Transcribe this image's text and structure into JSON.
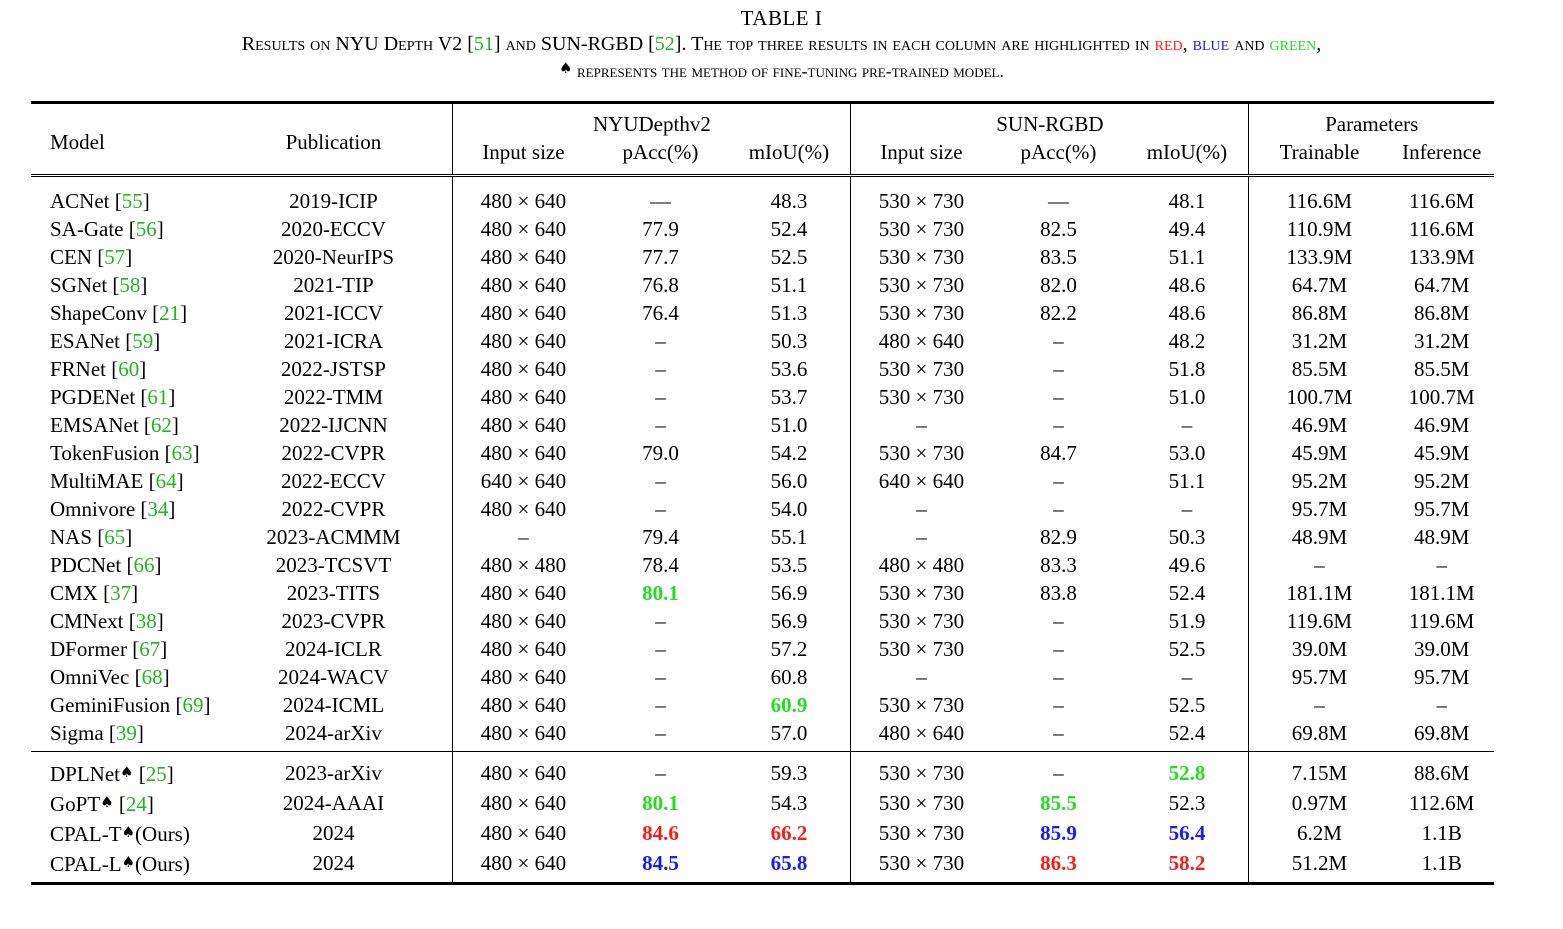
{
  "caption": {
    "title": "TABLE I",
    "line1_prefix": "Results on NYU Depth V2 [",
    "line1_ref1": "51",
    "line1_mid": "] and SUN-RGBD [",
    "line1_ref2": "52",
    "line1_rest": "]. The top three results in each column are highlighted in ",
    "red_word": "red",
    "comma1": ", ",
    "blue_word": "blue",
    "and_word": " and ",
    "green_word": "green",
    "comma2": ",",
    "spade": "♠",
    "line2": " represents the method of fine-tuning pre-trained model."
  },
  "colors": {
    "red": "#ff1a1a",
    "blue": "#1a1aff",
    "green": "#22dd22",
    "cite": "#22b422"
  },
  "header": {
    "model": "Model",
    "publication": "Publication",
    "nyu": "NYUDepthv2",
    "sun": "SUN-RGBD",
    "params": "Parameters",
    "input_size": "Input size",
    "pacc": "pAcc(%)",
    "miou": "mIoU(%)",
    "trainable": "Trainable",
    "inference": "Inference"
  },
  "rows": [
    {
      "model": "ACNet",
      "ref": "55",
      "pub": "2019-ICIP",
      "nyu_in": "480 × 640",
      "nyu_pacc": "—",
      "nyu_miou": "48.3",
      "sun_in": "530 × 730",
      "sun_pacc": "—",
      "sun_miou": "48.1",
      "train": "116.6M",
      "infer": "116.6M"
    },
    {
      "model": "SA-Gate",
      "ref": "56",
      "pub": "2020-ECCV",
      "nyu_in": "480 × 640",
      "nyu_pacc": "77.9",
      "nyu_miou": "52.4",
      "sun_in": "530 × 730",
      "sun_pacc": "82.5",
      "sun_miou": "49.4",
      "train": "110.9M",
      "infer": "116.6M"
    },
    {
      "model": "CEN",
      "ref": "57",
      "pub": "2020-NeurIPS",
      "nyu_in": "480 × 640",
      "nyu_pacc": "77.7",
      "nyu_miou": "52.5",
      "sun_in": "530 × 730",
      "sun_pacc": "83.5",
      "sun_miou": "51.1",
      "train": "133.9M",
      "infer": "133.9M"
    },
    {
      "model": "SGNet",
      "ref": "58",
      "pub": "2021-TIP",
      "nyu_in": "480 × 640",
      "nyu_pacc": "76.8",
      "nyu_miou": "51.1",
      "sun_in": "530 × 730",
      "sun_pacc": "82.0",
      "sun_miou": "48.6",
      "train": "64.7M",
      "infer": "64.7M"
    },
    {
      "model": "ShapeConv",
      "ref": "21",
      "pub": "2021-ICCV",
      "nyu_in": "480 × 640",
      "nyu_pacc": "76.4",
      "nyu_miou": "51.3",
      "sun_in": "530 × 730",
      "sun_pacc": "82.2",
      "sun_miou": "48.6",
      "train": "86.8M",
      "infer": "86.8M"
    },
    {
      "model": "ESANet",
      "ref": "59",
      "pub": "2021-ICRA",
      "nyu_in": "480 × 640",
      "nyu_pacc": "–",
      "nyu_miou": "50.3",
      "sun_in": "480 × 640",
      "sun_pacc": "–",
      "sun_miou": "48.2",
      "train": "31.2M",
      "infer": "31.2M"
    },
    {
      "model": "FRNet",
      "ref": "60",
      "pub": "2022-JSTSP",
      "nyu_in": "480 × 640",
      "nyu_pacc": "–",
      "nyu_miou": "53.6",
      "sun_in": "530 × 730",
      "sun_pacc": "–",
      "sun_miou": "51.8",
      "train": "85.5M",
      "infer": "85.5M"
    },
    {
      "model": "PGDENet",
      "ref": "61",
      "pub": "2022-TMM",
      "nyu_in": "480 × 640",
      "nyu_pacc": "–",
      "nyu_miou": "53.7",
      "sun_in": "530 × 730",
      "sun_pacc": "–",
      "sun_miou": "51.0",
      "train": "100.7M",
      "infer": "100.7M"
    },
    {
      "model": "EMSANet",
      "ref": "62",
      "pub": "2022-IJCNN",
      "nyu_in": "480 × 640",
      "nyu_pacc": "–",
      "nyu_miou": "51.0",
      "sun_in": "–",
      "sun_pacc": "–",
      "sun_miou": "–",
      "train": "46.9M",
      "infer": "46.9M"
    },
    {
      "model": "TokenFusion",
      "ref": "63",
      "pub": "2022-CVPR",
      "nyu_in": "480 × 640",
      "nyu_pacc": "79.0",
      "nyu_miou": "54.2",
      "sun_in": "530 × 730",
      "sun_pacc": "84.7",
      "sun_miou": "53.0",
      "train": "45.9M",
      "infer": "45.9M"
    },
    {
      "model": "MultiMAE",
      "ref": "64",
      "pub": "2022-ECCV",
      "nyu_in": "640 × 640",
      "nyu_pacc": "–",
      "nyu_miou": "56.0",
      "sun_in": "640 × 640",
      "sun_pacc": "–",
      "sun_miou": "51.1",
      "train": "95.2M",
      "infer": "95.2M"
    },
    {
      "model": "Omnivore",
      "ref": "34",
      "pub": "2022-CVPR",
      "nyu_in": "480 × 640",
      "nyu_pacc": "–",
      "nyu_miou": "54.0",
      "sun_in": "–",
      "sun_pacc": "–",
      "sun_miou": "–",
      "train": "95.7M",
      "infer": "95.7M"
    },
    {
      "model": "NAS",
      "ref": "65",
      "pub": "2023-ACMMM",
      "nyu_in": "–",
      "nyu_pacc": "79.4",
      "nyu_miou": "55.1",
      "sun_in": "–",
      "sun_pacc": "82.9",
      "sun_miou": "50.3",
      "train": "48.9M",
      "infer": "48.9M"
    },
    {
      "model": "PDCNet",
      "ref": "66",
      "pub": "2023-TCSVT",
      "nyu_in": "480 × 480",
      "nyu_pacc": "78.4",
      "nyu_miou": "53.5",
      "sun_in": "480 × 480",
      "sun_pacc": "83.3",
      "sun_miou": "49.6",
      "train": "–",
      "infer": "–"
    },
    {
      "model": "CMX",
      "ref": "37",
      "pub": "2023-TITS",
      "nyu_in": "480 × 640",
      "nyu_pacc": "80.1",
      "nyu_pacc_hl": "green",
      "nyu_miou": "56.9",
      "sun_in": "530 × 730",
      "sun_pacc": "83.8",
      "sun_miou": "52.4",
      "train": "181.1M",
      "infer": "181.1M"
    },
    {
      "model": "CMNext",
      "ref": "38",
      "pub": "2023-CVPR",
      "nyu_in": "480 × 640",
      "nyu_pacc": "–",
      "nyu_miou": "56.9",
      "sun_in": "530 × 730",
      "sun_pacc": "–",
      "sun_miou": "51.9",
      "train": "119.6M",
      "infer": "119.6M"
    },
    {
      "model": "DFormer",
      "ref": "67",
      "pub": "2024-ICLR",
      "nyu_in": "480 × 640",
      "nyu_pacc": "–",
      "nyu_miou": "57.2",
      "sun_in": "530 × 730",
      "sun_pacc": "–",
      "sun_miou": "52.5",
      "train": "39.0M",
      "infer": "39.0M"
    },
    {
      "model": "OmniVec",
      "ref": "68",
      "pub": "2024-WACV",
      "nyu_in": "480 × 640",
      "nyu_pacc": "–",
      "nyu_miou": "60.8",
      "sun_in": "–",
      "sun_pacc": "–",
      "sun_miou": "–",
      "train": "95.7M",
      "infer": "95.7M"
    },
    {
      "model": "GeminiFusion",
      "ref": "69",
      "pub": "2024-ICML",
      "nyu_in": "480 × 640",
      "nyu_pacc": "–",
      "nyu_miou": "60.9",
      "nyu_miou_hl": "green",
      "sun_in": "530 × 730",
      "sun_pacc": "–",
      "sun_miou": "52.5",
      "train": "–",
      "infer": "–"
    },
    {
      "model": "Sigma",
      "ref": "39",
      "pub": "2024-arXiv",
      "nyu_in": "480 × 640",
      "nyu_pacc": "–",
      "nyu_miou": "57.0",
      "sun_in": "480 × 640",
      "sun_pacc": "–",
      "sun_miou": "52.4",
      "train": "69.8M",
      "infer": "69.8M"
    }
  ],
  "rows_ft": [
    {
      "model": "DPLNet",
      "spade": "♠",
      "ref": "25",
      "suffix": "",
      "pub": "2023-arXiv",
      "nyu_in": "480 × 640",
      "nyu_pacc": "–",
      "nyu_miou": "59.3",
      "sun_in": "530 × 730",
      "sun_pacc": "–",
      "sun_miou": "52.8",
      "sun_miou_hl": "green",
      "train": "7.15M",
      "infer": "88.6M"
    },
    {
      "model": "GoPT",
      "spade": "♠",
      "ref": "24",
      "suffix": "",
      "pub": "2024-AAAI",
      "nyu_in": "480 × 640",
      "nyu_pacc": "80.1",
      "nyu_pacc_hl": "green",
      "nyu_miou": "54.3",
      "sun_in": "530 × 730",
      "sun_pacc": "85.5",
      "sun_pacc_hl": "green",
      "sun_miou": "52.3",
      "train": "0.97M",
      "infer": "112.6M"
    },
    {
      "model": "CPAL-T",
      "spade": "♠",
      "ref": "",
      "suffix": "(Ours)",
      "pub": "2024",
      "nyu_in": "480 × 640",
      "nyu_pacc": "84.6",
      "nyu_pacc_hl": "red",
      "nyu_miou": "66.2",
      "nyu_miou_hl": "red",
      "sun_in": "530 × 730",
      "sun_pacc": "85.9",
      "sun_pacc_hl": "blue",
      "sun_miou": "56.4",
      "sun_miou_hl": "blue",
      "train": "6.2M",
      "infer": "1.1B"
    },
    {
      "model": "CPAL-L",
      "spade": "♠",
      "ref": "",
      "suffix": "(Ours)",
      "pub": "2024",
      "nyu_in": "480 × 640",
      "nyu_pacc": "84.5",
      "nyu_pacc_hl": "blue",
      "nyu_miou": "65.8",
      "nyu_miou_hl": "blue",
      "sun_in": "530 × 730",
      "sun_pacc": "86.3",
      "sun_pacc_hl": "red",
      "sun_miou": "58.2",
      "sun_miou_hl": "red",
      "train": "51.2M",
      "infer": "1.1B"
    }
  ]
}
